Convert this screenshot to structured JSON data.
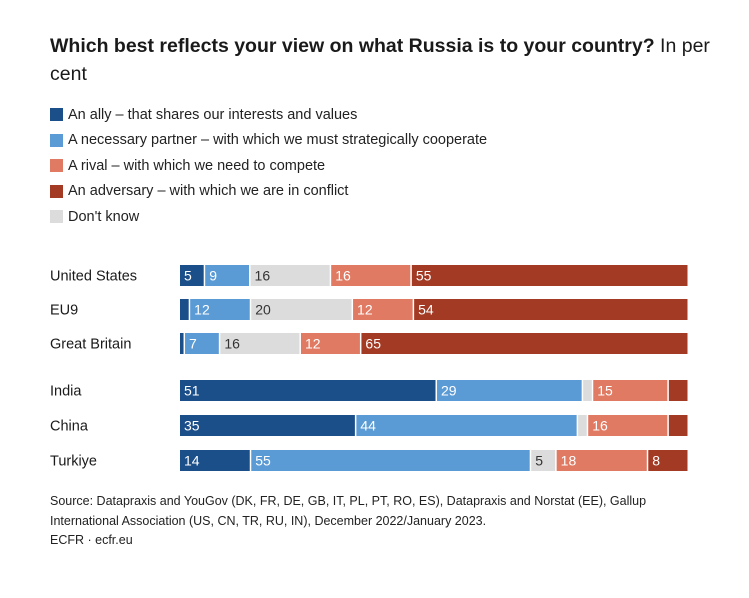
{
  "title": {
    "bold": "Which best reflects your view on what Russia is to your country?",
    "unit": "In per cent"
  },
  "colors": {
    "ally": "#1b4f8a",
    "partner": "#5b9bd5",
    "dont_know": "#dcdcdc",
    "rival": "#e07a63",
    "adversary": "#a33a24"
  },
  "legend": [
    {
      "key": "ally",
      "label": "An ally – that shares our interests and values",
      "color": "#1b4f8a"
    },
    {
      "key": "partner",
      "label": "A necessary partner – with which we must strategically cooperate",
      "color": "#5b9bd5"
    },
    {
      "key": "rival",
      "label": "A rival – with which we need to compete",
      "color": "#e07a63"
    },
    {
      "key": "adversary",
      "label": "An adversary – with which we are in conflict",
      "color": "#a33a24"
    },
    {
      "key": "dont_know",
      "label": "Don't know",
      "color": "#dcdcdc"
    }
  ],
  "chart_data": {
    "type": "bar",
    "orientation": "horizontal-stacked-100",
    "categories": [
      "United States",
      "EU9",
      "Great Britain",
      "India",
      "China",
      "Turkiye"
    ],
    "series": [
      {
        "key": "ally",
        "values": [
          5,
          2,
          1,
          51,
          35,
          14
        ]
      },
      {
        "key": "partner",
        "values": [
          9,
          12,
          7,
          29,
          44,
          55
        ]
      },
      {
        "key": "dont_know",
        "values": [
          16,
          20,
          16,
          2,
          2,
          5
        ]
      },
      {
        "key": "rival",
        "values": [
          16,
          12,
          12,
          15,
          16,
          18
        ]
      },
      {
        "key": "adversary",
        "values": [
          55,
          54,
          65,
          4,
          4,
          8
        ]
      }
    ],
    "data_labels": [
      [
        "5",
        "9",
        "16",
        "16",
        "55"
      ],
      [
        "",
        "12",
        "20",
        "12",
        "54"
      ],
      [
        "",
        "7",
        "16",
        "12",
        "65"
      ],
      [
        "51",
        "29",
        "",
        "15",
        ""
      ],
      [
        "35",
        "44",
        "",
        "16",
        ""
      ],
      [
        "14",
        "55",
        "5",
        "18",
        "8"
      ]
    ],
    "xlim": [
      0,
      100
    ]
  },
  "source": {
    "line1": "Source: Datapraxis and YouGov (DK, FR, DE, GB, IT, PL, PT, RO, ES), Datapraxis and Norstat (EE), Gallup International Association (US, CN, TR, RU, IN), December 2022/January 2023.",
    "line2": "ECFR · ecfr.eu"
  }
}
